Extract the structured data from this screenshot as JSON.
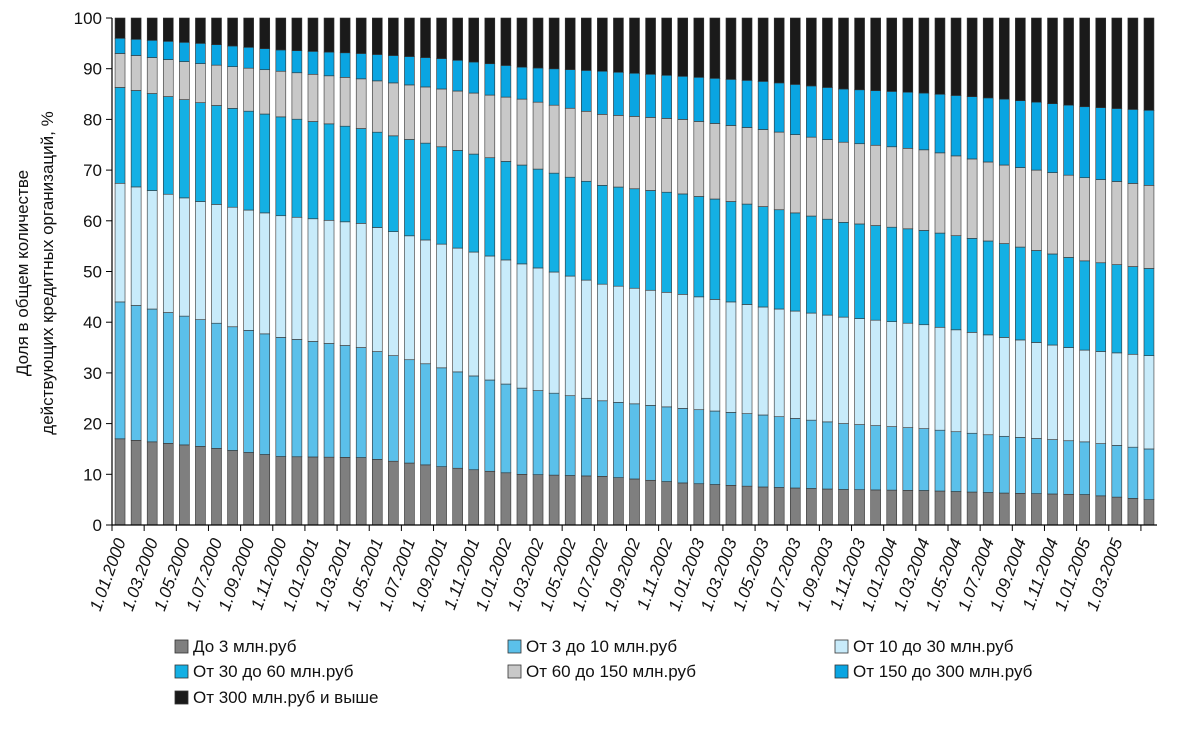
{
  "chart_data": {
    "type": "bar",
    "stacked": true,
    "ylabel_line1": "Доля в общем количестве",
    "ylabel_line2": "действующих кредитных организаций, %",
    "ylim": [
      0,
      100
    ],
    "yticks": [
      "0",
      "10",
      "20",
      "30",
      "40",
      "50",
      "60",
      "70",
      "80",
      "90",
      "100"
    ],
    "grid": false,
    "legend_position": "bottom",
    "x_tick_labels": [
      "1.01.2000",
      "1.03.2000",
      "1.05.2000",
      "1.07.2000",
      "1.09.2000",
      "1.11.2000",
      "1.01.2001",
      "1.03.2001",
      "1.05.2001",
      "1.07.2001",
      "1.09.2001",
      "1.11.2001",
      "1.01.2002",
      "1.03.2002",
      "1.05.2002",
      "1.07.2002",
      "1.09.2002",
      "1.11.2002",
      "1.01.2003",
      "1.03.2003",
      "1.05.2003",
      "1.07.2003",
      "1.09.2003",
      "1.11.2003",
      "1.01.2004",
      "1.03.2004",
      "1.05.2004",
      "1.07.2004",
      "1.09.2004",
      "1.11.2004",
      "1.01.2005",
      "1.03.2005"
    ],
    "series": [
      {
        "name": "До 3 млн.руб",
        "color": "#7f7f7f",
        "cum": [
          [
            0,
            17
          ],
          [
            5,
            15.5
          ],
          [
            10,
            13.5
          ],
          [
            15,
            13.3
          ],
          [
            20,
            11.5
          ],
          [
            25,
            10
          ],
          [
            30,
            9.6
          ],
          [
            35,
            8.3
          ],
          [
            40,
            7.5
          ],
          [
            45,
            7
          ],
          [
            50,
            6.8
          ],
          [
            55,
            6.3
          ],
          [
            60,
            6
          ],
          [
            64,
            5
          ]
        ]
      },
      {
        "name": "От 3 до 10 млн.руб",
        "color": "#5bc0ea",
        "cum": [
          [
            0,
            44
          ],
          [
            5,
            40.5
          ],
          [
            10,
            37
          ],
          [
            15,
            35
          ],
          [
            20,
            31
          ],
          [
            25,
            27
          ],
          [
            30,
            24.5
          ],
          [
            35,
            23
          ],
          [
            40,
            21.7
          ],
          [
            45,
            20
          ],
          [
            50,
            19
          ],
          [
            55,
            17.5
          ],
          [
            60,
            16.4
          ],
          [
            64,
            15
          ]
        ]
      },
      {
        "name": "От 10 до 30 млн.руб",
        "color": "#c8ebfa",
        "cum": [
          [
            0,
            67.4
          ],
          [
            5,
            63.8
          ],
          [
            10,
            61
          ],
          [
            15,
            59.5
          ],
          [
            20,
            55.4
          ],
          [
            25,
            51.5
          ],
          [
            30,
            47.5
          ],
          [
            35,
            45.5
          ],
          [
            40,
            43
          ],
          [
            45,
            41
          ],
          [
            50,
            39.5
          ],
          [
            55,
            37
          ],
          [
            60,
            34.5
          ],
          [
            64,
            33.4
          ]
        ]
      },
      {
        "name": "От 30  до 60 млн.руб",
        "color": "#14b0e4",
        "cum": [
          [
            0,
            86.3
          ],
          [
            5,
            83.3
          ],
          [
            10,
            80.5
          ],
          [
            15,
            78.2
          ],
          [
            20,
            74.6
          ],
          [
            25,
            71
          ],
          [
            30,
            67
          ],
          [
            35,
            65.3
          ],
          [
            40,
            62.8
          ],
          [
            45,
            59.7
          ],
          [
            50,
            58.1
          ],
          [
            55,
            55.5
          ],
          [
            60,
            52.1
          ],
          [
            64,
            50.6
          ]
        ]
      },
      {
        "name": "От 60  до 150 млн.руб",
        "color": "#c8c8c8",
        "cum": [
          [
            0,
            93
          ],
          [
            5,
            91
          ],
          [
            10,
            89.5
          ],
          [
            15,
            88
          ],
          [
            20,
            86
          ],
          [
            25,
            84
          ],
          [
            30,
            81
          ],
          [
            35,
            80
          ],
          [
            40,
            78
          ],
          [
            45,
            75.5
          ],
          [
            50,
            74
          ],
          [
            55,
            71
          ],
          [
            60,
            68.5
          ],
          [
            64,
            67
          ]
        ]
      },
      {
        "name": "От 150 до 300 млн.руб",
        "color": "#0aa5e2",
        "cum": [
          [
            0,
            96
          ],
          [
            5,
            95
          ],
          [
            10,
            93.7
          ],
          [
            15,
            93
          ],
          [
            20,
            92
          ],
          [
            25,
            90.3
          ],
          [
            30,
            89.5
          ],
          [
            35,
            88.5
          ],
          [
            40,
            87.5
          ],
          [
            45,
            86
          ],
          [
            50,
            85.2
          ],
          [
            55,
            84
          ],
          [
            60,
            82.5
          ],
          [
            64,
            81.8
          ]
        ]
      },
      {
        "name": "От 300 млн.руб и выше",
        "color": "#1a1a1a",
        "cum": [
          [
            0,
            100
          ],
          [
            64,
            100
          ]
        ]
      }
    ]
  }
}
